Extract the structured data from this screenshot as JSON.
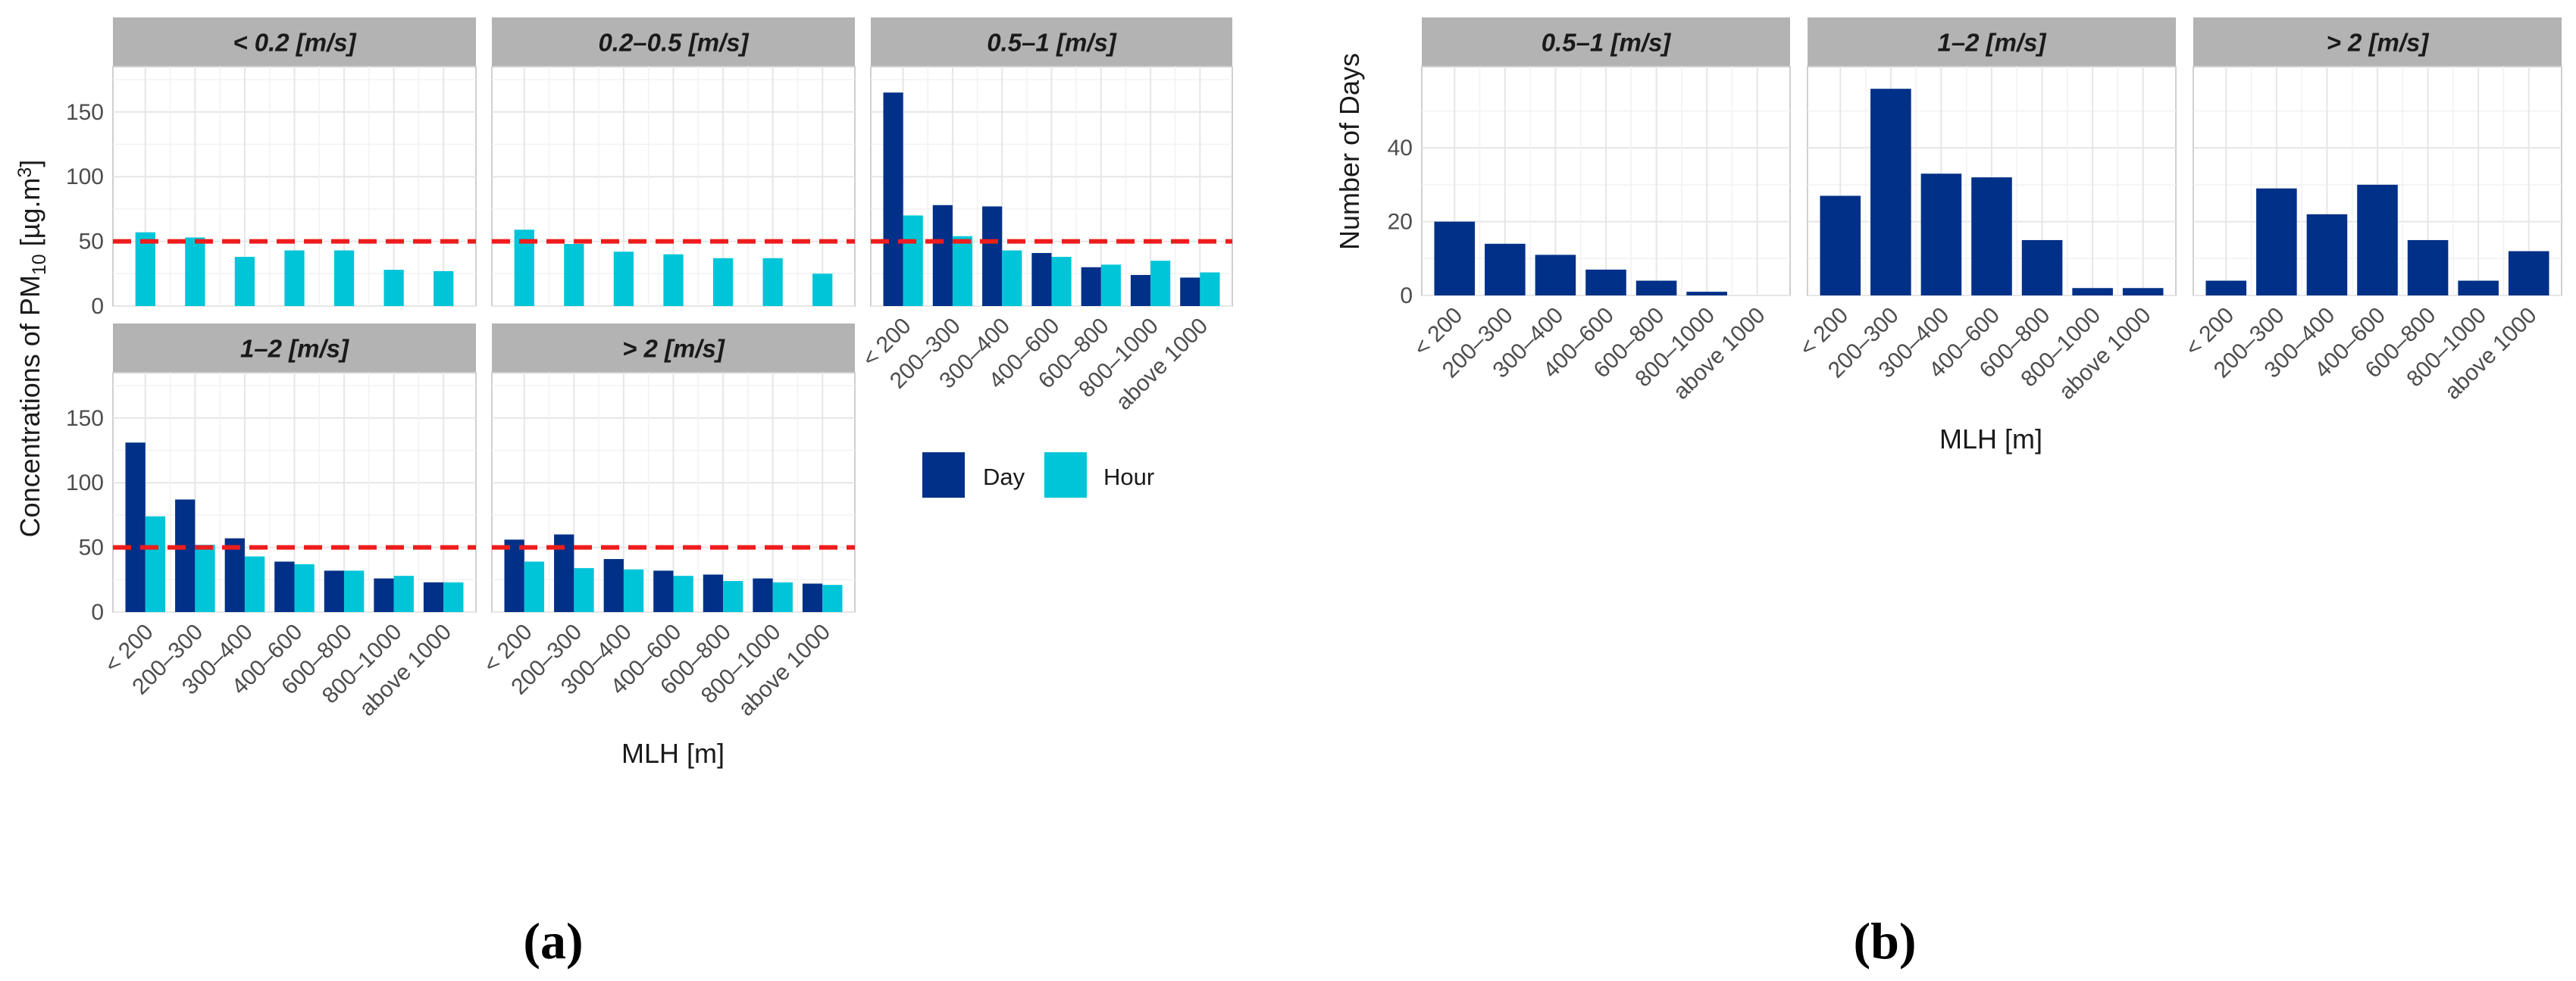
{
  "colors": {
    "day": "#003087",
    "hour": "#00C5D8",
    "threshold": "#EE1C1C",
    "strip": "#B3B3B3",
    "grid": "#E6E6E6"
  },
  "chart_data": [
    {
      "id": "a",
      "type": "bar",
      "panel_label": "(a)",
      "xlabel": "MLH [m]",
      "ylabel_parts": [
        "Concentrations of PM",
        "10",
        " [µg.m",
        "3",
        "]"
      ],
      "ylim": [
        0,
        185
      ],
      "yticks": [
        "0",
        "50",
        "100",
        "150"
      ],
      "threshold": 50,
      "categories": [
        "< 200",
        "200–300",
        "300–400",
        "400–600",
        "600–800",
        "800–1000",
        "above 1000"
      ],
      "legend": {
        "position": "right",
        "entries": [
          "Day",
          "Hour"
        ]
      },
      "facets": [
        {
          "title": "< 0.2 [m/s]",
          "series": [
            {
              "name": "Day",
              "values": [
                null,
                null,
                null,
                null,
                null,
                null,
                null
              ]
            },
            {
              "name": "Hour",
              "values": [
                57,
                53,
                38,
                43,
                43,
                28,
                27
              ]
            }
          ]
        },
        {
          "title": "0.2–0.5 [m/s]",
          "series": [
            {
              "name": "Day",
              "values": [
                null,
                null,
                null,
                null,
                null,
                null,
                null
              ]
            },
            {
              "name": "Hour",
              "values": [
                59,
                48,
                42,
                40,
                37,
                37,
                25
              ]
            }
          ]
        },
        {
          "title": "0.5–1 [m/s]",
          "series": [
            {
              "name": "Day",
              "values": [
                165,
                78,
                77,
                41,
                30,
                24,
                22
              ]
            },
            {
              "name": "Hour",
              "values": [
                70,
                54,
                43,
                38,
                32,
                35,
                26
              ]
            }
          ]
        },
        {
          "title": "1–2 [m/s]",
          "series": [
            {
              "name": "Day",
              "values": [
                131,
                87,
                57,
                39,
                32,
                26,
                23
              ]
            },
            {
              "name": "Hour",
              "values": [
                74,
                52,
                43,
                37,
                32,
                28,
                23
              ]
            }
          ]
        },
        {
          "title": "> 2 [m/s]",
          "series": [
            {
              "name": "Day",
              "values": [
                56,
                60,
                41,
                32,
                29,
                26,
                22
              ]
            },
            {
              "name": "Hour",
              "values": [
                39,
                34,
                33,
                28,
                24,
                23,
                21
              ]
            }
          ]
        }
      ]
    },
    {
      "id": "b",
      "type": "bar",
      "panel_label": "(b)",
      "xlabel": "MLH [m]",
      "ylabel": "Number of Days",
      "ylim": [
        0,
        62
      ],
      "yticks": [
        "0",
        "20",
        "40"
      ],
      "categories": [
        "< 200",
        "200–300",
        "300–400",
        "400–600",
        "600–800",
        "800–1000",
        "above 1000"
      ],
      "facets": [
        {
          "title": "0.5–1 [m/s]",
          "values": [
            20,
            14,
            11,
            7,
            4,
            1,
            0
          ]
        },
        {
          "title": "1–2 [m/s]",
          "values": [
            27,
            56,
            33,
            32,
            15,
            2,
            2
          ]
        },
        {
          "title": "> 2 [m/s]",
          "values": [
            4,
            29,
            22,
            30,
            15,
            4,
            12
          ]
        }
      ]
    }
  ]
}
